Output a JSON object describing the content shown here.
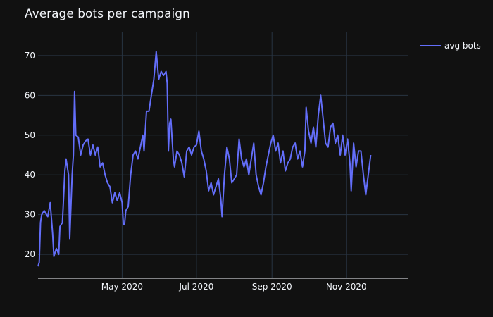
{
  "chart_data": {
    "type": "line",
    "title": "Average bots per campaign",
    "xlabel": "",
    "ylabel": "",
    "x_range": [
      "2020-02-22",
      "2020-12-22"
    ],
    "ylim": [
      14,
      76
    ],
    "y_ticks": [
      20,
      30,
      40,
      50,
      60,
      70
    ],
    "x_ticks": [
      {
        "date": "2020-05-01",
        "label": "May 2020"
      },
      {
        "date": "2020-07-01",
        "label": "Jul 2020"
      },
      {
        "date": "2020-09-01",
        "label": "Sep 2020"
      },
      {
        "date": "2020-11-01",
        "label": "Nov 2020"
      }
    ],
    "grid": true,
    "legend_position": "top-right",
    "series": [
      {
        "name": "avg bots",
        "color": "#636efa",
        "points": [
          [
            "2020-02-22",
            17
          ],
          [
            "2020-02-23",
            18
          ],
          [
            "2020-02-24",
            28
          ],
          [
            "2020-02-25",
            30
          ],
          [
            "2020-02-27",
            31
          ],
          [
            "2020-03-01",
            29.5
          ],
          [
            "2020-03-03",
            33
          ],
          [
            "2020-03-05",
            25
          ],
          [
            "2020-03-06",
            19.5
          ],
          [
            "2020-03-08",
            21.5
          ],
          [
            "2020-03-10",
            20
          ],
          [
            "2020-03-11",
            27
          ],
          [
            "2020-03-13",
            28
          ],
          [
            "2020-03-15",
            41
          ],
          [
            "2020-03-16",
            44
          ],
          [
            "2020-03-18",
            40
          ],
          [
            "2020-03-19",
            24
          ],
          [
            "2020-03-21",
            40
          ],
          [
            "2020-03-22",
            45
          ],
          [
            "2020-03-23",
            61
          ],
          [
            "2020-03-24",
            50
          ],
          [
            "2020-03-26",
            49.5
          ],
          [
            "2020-03-28",
            45
          ],
          [
            "2020-03-30",
            47.5
          ],
          [
            "2020-04-01",
            48.5
          ],
          [
            "2020-04-03",
            49
          ],
          [
            "2020-04-05",
            45
          ],
          [
            "2020-04-07",
            47.5
          ],
          [
            "2020-04-09",
            45
          ],
          [
            "2020-04-11",
            47
          ],
          [
            "2020-04-13",
            42
          ],
          [
            "2020-04-15",
            43
          ],
          [
            "2020-04-17",
            40
          ],
          [
            "2020-04-19",
            38
          ],
          [
            "2020-04-21",
            37
          ],
          [
            "2020-04-23",
            33
          ],
          [
            "2020-04-25",
            35.5
          ],
          [
            "2020-04-27",
            33.5
          ],
          [
            "2020-04-29",
            35.5
          ],
          [
            "2020-05-01",
            33
          ],
          [
            "2020-05-02",
            27.5
          ],
          [
            "2020-05-03",
            27.5
          ],
          [
            "2020-05-04",
            31
          ],
          [
            "2020-05-06",
            32
          ],
          [
            "2020-05-08",
            40
          ],
          [
            "2020-05-10",
            45
          ],
          [
            "2020-05-12",
            46
          ],
          [
            "2020-05-14",
            44
          ],
          [
            "2020-05-16",
            47
          ],
          [
            "2020-05-18",
            50
          ],
          [
            "2020-05-19",
            46
          ],
          [
            "2020-05-21",
            56
          ],
          [
            "2020-05-23",
            56
          ],
          [
            "2020-05-25",
            60
          ],
          [
            "2020-05-27",
            64
          ],
          [
            "2020-05-29",
            71
          ],
          [
            "2020-05-31",
            64
          ],
          [
            "2020-06-02",
            66
          ],
          [
            "2020-06-04",
            65
          ],
          [
            "2020-06-06",
            66
          ],
          [
            "2020-06-07",
            63
          ],
          [
            "2020-06-08",
            46
          ],
          [
            "2020-06-09",
            53
          ],
          [
            "2020-06-10",
            54
          ],
          [
            "2020-06-12",
            44
          ],
          [
            "2020-06-13",
            42
          ],
          [
            "2020-06-15",
            46
          ],
          [
            "2020-06-17",
            45
          ],
          [
            "2020-06-19",
            43
          ],
          [
            "2020-06-21",
            39.5
          ],
          [
            "2020-06-23",
            46
          ],
          [
            "2020-06-25",
            47
          ],
          [
            "2020-06-27",
            45
          ],
          [
            "2020-06-29",
            47
          ],
          [
            "2020-07-01",
            47.5
          ],
          [
            "2020-07-03",
            51
          ],
          [
            "2020-07-05",
            46
          ],
          [
            "2020-07-07",
            44
          ],
          [
            "2020-07-09",
            41
          ],
          [
            "2020-07-11",
            36
          ],
          [
            "2020-07-13",
            38
          ],
          [
            "2020-07-15",
            35
          ],
          [
            "2020-07-17",
            37
          ],
          [
            "2020-07-19",
            39
          ],
          [
            "2020-07-21",
            34
          ],
          [
            "2020-07-22",
            29.5
          ],
          [
            "2020-07-24",
            40
          ],
          [
            "2020-07-26",
            47
          ],
          [
            "2020-07-28",
            44
          ],
          [
            "2020-07-30",
            38
          ],
          [
            "2020-08-01",
            39
          ],
          [
            "2020-08-03",
            40
          ],
          [
            "2020-08-05",
            49
          ],
          [
            "2020-08-07",
            44
          ],
          [
            "2020-08-09",
            42
          ],
          [
            "2020-08-11",
            44
          ],
          [
            "2020-08-13",
            40
          ],
          [
            "2020-08-15",
            44
          ],
          [
            "2020-08-17",
            48
          ],
          [
            "2020-08-19",
            40
          ],
          [
            "2020-08-21",
            37
          ],
          [
            "2020-08-23",
            35
          ],
          [
            "2020-08-25",
            38
          ],
          [
            "2020-08-27",
            42
          ],
          [
            "2020-08-29",
            45
          ],
          [
            "2020-08-31",
            48
          ],
          [
            "2020-09-02",
            50
          ],
          [
            "2020-09-04",
            46
          ],
          [
            "2020-09-06",
            48
          ],
          [
            "2020-09-08",
            43
          ],
          [
            "2020-09-10",
            46
          ],
          [
            "2020-09-12",
            41
          ],
          [
            "2020-09-14",
            43
          ],
          [
            "2020-09-16",
            44
          ],
          [
            "2020-09-18",
            47
          ],
          [
            "2020-09-20",
            48
          ],
          [
            "2020-09-22",
            44
          ],
          [
            "2020-09-24",
            46
          ],
          [
            "2020-09-26",
            42
          ],
          [
            "2020-09-28",
            46
          ],
          [
            "2020-09-29",
            57
          ],
          [
            "2020-10-01",
            51
          ],
          [
            "2020-10-03",
            48
          ],
          [
            "2020-10-05",
            52
          ],
          [
            "2020-10-07",
            47
          ],
          [
            "2020-10-09",
            55
          ],
          [
            "2020-10-11",
            60
          ],
          [
            "2020-10-13",
            54
          ],
          [
            "2020-10-15",
            48
          ],
          [
            "2020-10-17",
            47
          ],
          [
            "2020-10-19",
            52
          ],
          [
            "2020-10-21",
            53
          ],
          [
            "2020-10-23",
            48
          ],
          [
            "2020-10-25",
            50
          ],
          [
            "2020-10-27",
            45
          ],
          [
            "2020-10-29",
            50
          ],
          [
            "2020-10-31",
            45
          ],
          [
            "2020-11-02",
            49
          ],
          [
            "2020-11-04",
            43
          ],
          [
            "2020-11-05",
            36
          ],
          [
            "2020-11-07",
            48
          ],
          [
            "2020-11-09",
            42
          ],
          [
            "2020-11-11",
            46
          ],
          [
            "2020-11-13",
            46
          ],
          [
            "2020-11-15",
            40
          ],
          [
            "2020-11-17",
            35
          ],
          [
            "2020-11-19",
            40
          ],
          [
            "2020-11-21",
            45
          ]
        ]
      }
    ]
  }
}
